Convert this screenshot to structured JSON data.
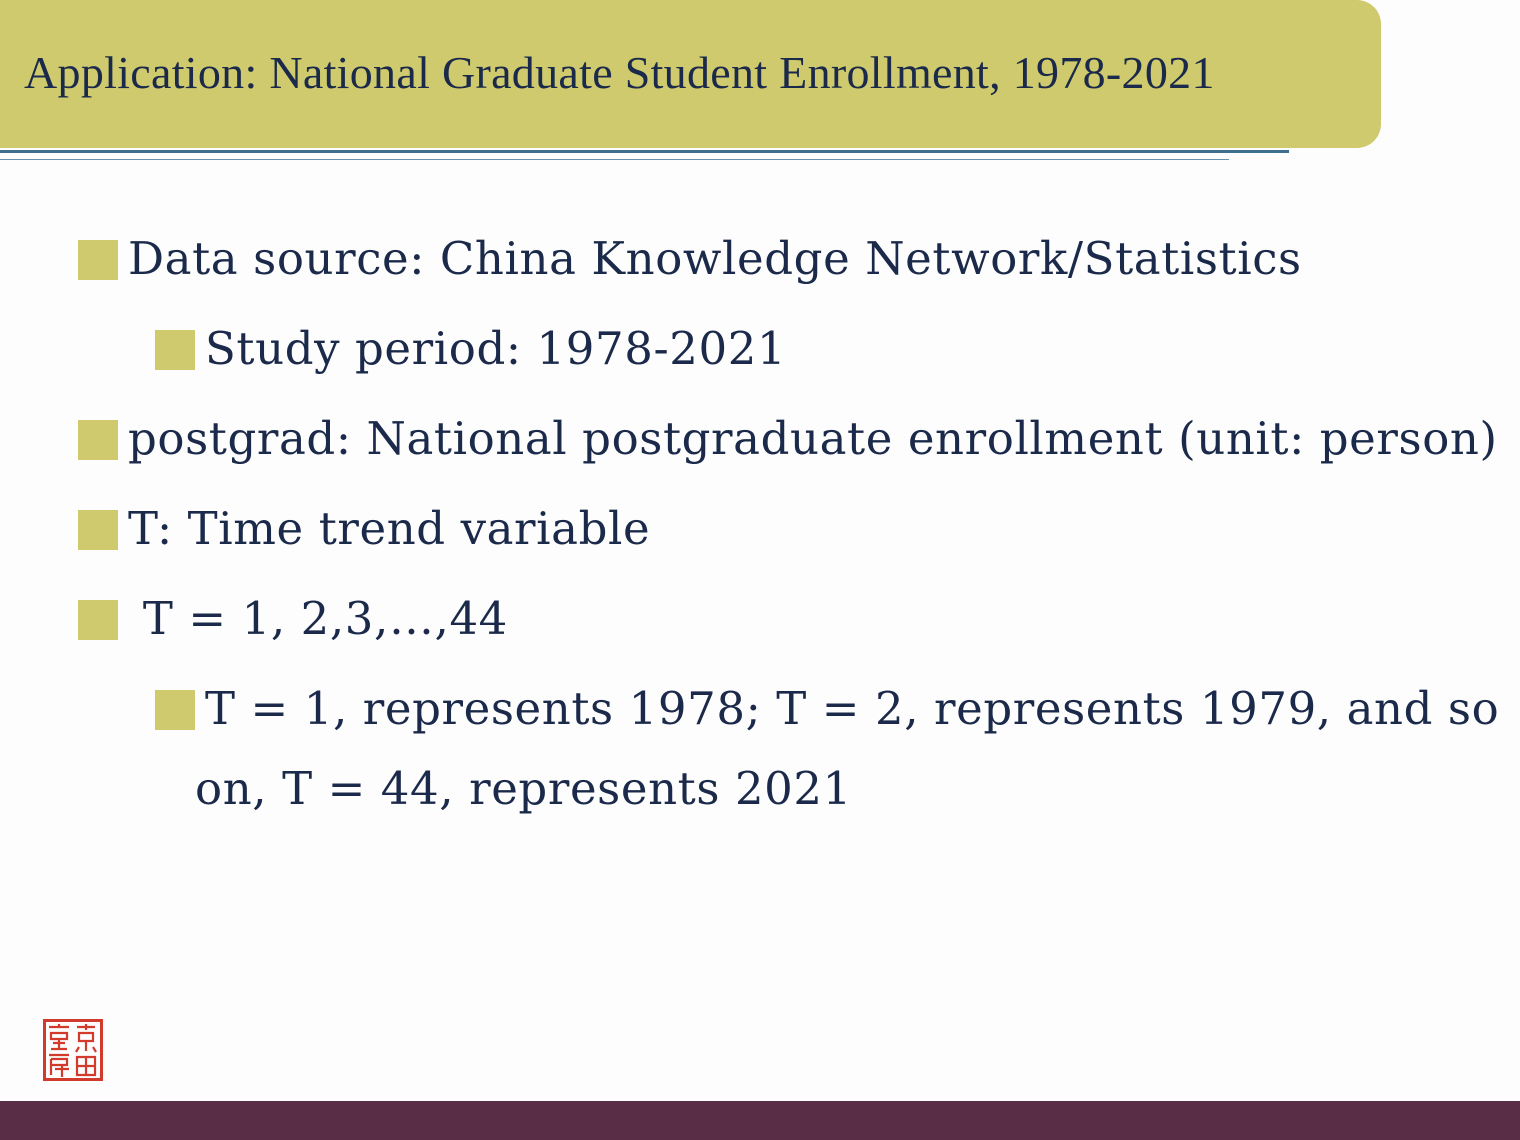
{
  "slide": {
    "title": "Application: National Graduate Student Enrollment, 1978-2021",
    "bullets": [
      {
        "text": "Data source: China Knowledge Network/Statistics"
      },
      {
        "text": "Study period: 1978-2021"
      },
      {
        "text": "postgrad: National postgraduate enrollment (unit: person)"
      },
      {
        "text": "T: Time trend variable"
      },
      {
        "text": " T = 1, 2,3,…,44"
      },
      {
        "text": "T = 1, represents 1978; T = 2, represents 1979, and so",
        "continuation": "on, T = 44, represents 2021"
      }
    ],
    "seal": {
      "color": "#d23a2c",
      "icon": "red-seal-logo",
      "chars": [
        "北",
        "京",
        "大",
        "學"
      ]
    },
    "colors": {
      "accent": "#cfca6d",
      "text": "#1b2a4a",
      "footer": "#5a2d47",
      "rule": "#3f6f8f"
    }
  }
}
